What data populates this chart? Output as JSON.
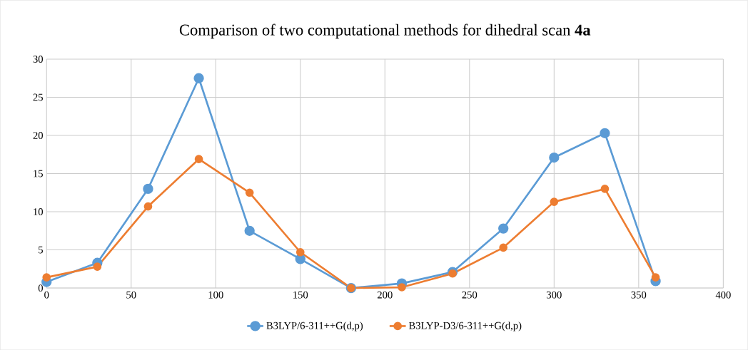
{
  "chart_data": {
    "type": "line",
    "title": "Comparison of two computational methods for dihedral scan **4a**",
    "x": [
      0,
      30,
      60,
      90,
      120,
      150,
      180,
      210,
      240,
      270,
      300,
      330,
      360
    ],
    "series": [
      {
        "name": "B3LYP/6-311++G(d,p)",
        "color": "#5b9bd5",
        "values": [
          0.8,
          3.3,
          13.0,
          27.5,
          7.5,
          3.8,
          0,
          0.6,
          2.1,
          7.8,
          17.1,
          20.3,
          0.9
        ]
      },
      {
        "name": "B3LYP-D3/6-311++G(d,p)",
        "color": "#ed7d31",
        "values": [
          1.4,
          2.8,
          10.7,
          16.9,
          12.5,
          4.7,
          0,
          0.1,
          1.9,
          5.3,
          11.3,
          13.0,
          1.4
        ]
      }
    ],
    "xlim": [
      0,
      400
    ],
    "xticks": [
      0,
      50,
      100,
      150,
      200,
      250,
      300,
      350,
      400
    ],
    "ylim": [
      0,
      30
    ],
    "yticks": [
      0,
      5,
      10,
      15,
      20,
      25,
      30
    ],
    "grid": true,
    "legend": "bottom",
    "marker": "circle",
    "line_style": "solid"
  }
}
